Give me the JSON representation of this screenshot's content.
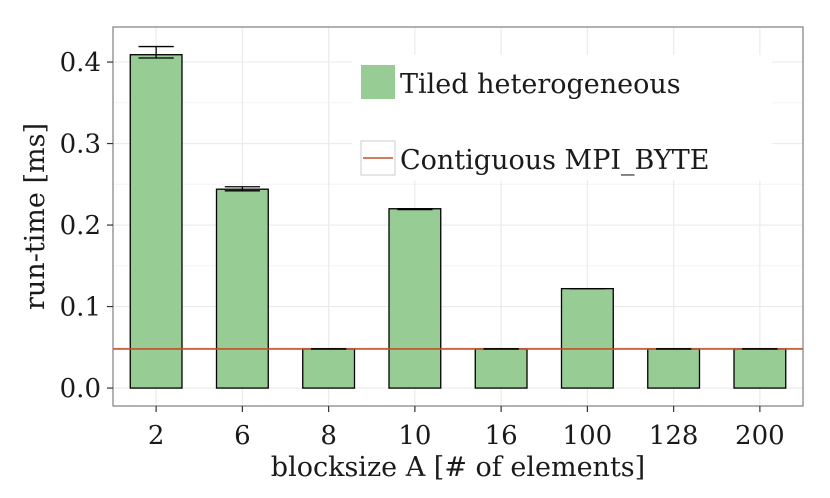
{
  "chart_data": {
    "type": "bar",
    "title": "",
    "xlabel": "blocksize A [# of elements]",
    "ylabel": "run-time [ms]",
    "categories": [
      "2",
      "6",
      "8",
      "10",
      "16",
      "100",
      "128",
      "200"
    ],
    "series": [
      {
        "name": "Tiled heterogeneous",
        "values": [
          0.409,
          0.244,
          0.048,
          0.22,
          0.048,
          0.122,
          0.048,
          0.048
        ],
        "error_low": [
          0.405,
          0.242,
          0.048,
          0.219,
          0.048,
          0.122,
          0.048,
          0.048
        ],
        "error_high": [
          0.419,
          0.247,
          0.048,
          0.22,
          0.048,
          0.122,
          0.048,
          0.048
        ]
      }
    ],
    "reference_line": {
      "name": "Contiguous MPI_BYTE",
      "value": 0.048
    },
    "ylim": [
      -0.022,
      0.443
    ],
    "yticks": [
      0.0,
      0.1,
      0.2,
      0.3,
      0.4
    ],
    "ytick_labels": [
      "0.0",
      "0.1",
      "0.2",
      "0.3",
      "0.4"
    ],
    "grid": true,
    "legend": "top-right inside plot",
    "colors": {
      "bar_fill": "#98cc95",
      "bar_stroke": "#000000",
      "ref_line": "#c0502a",
      "grid": "#ebebeb",
      "frame": "#7f7f7f"
    }
  },
  "legend": {
    "bar_label": "Tiled heterogeneous",
    "line_label": "Contiguous MPI_BYTE"
  }
}
